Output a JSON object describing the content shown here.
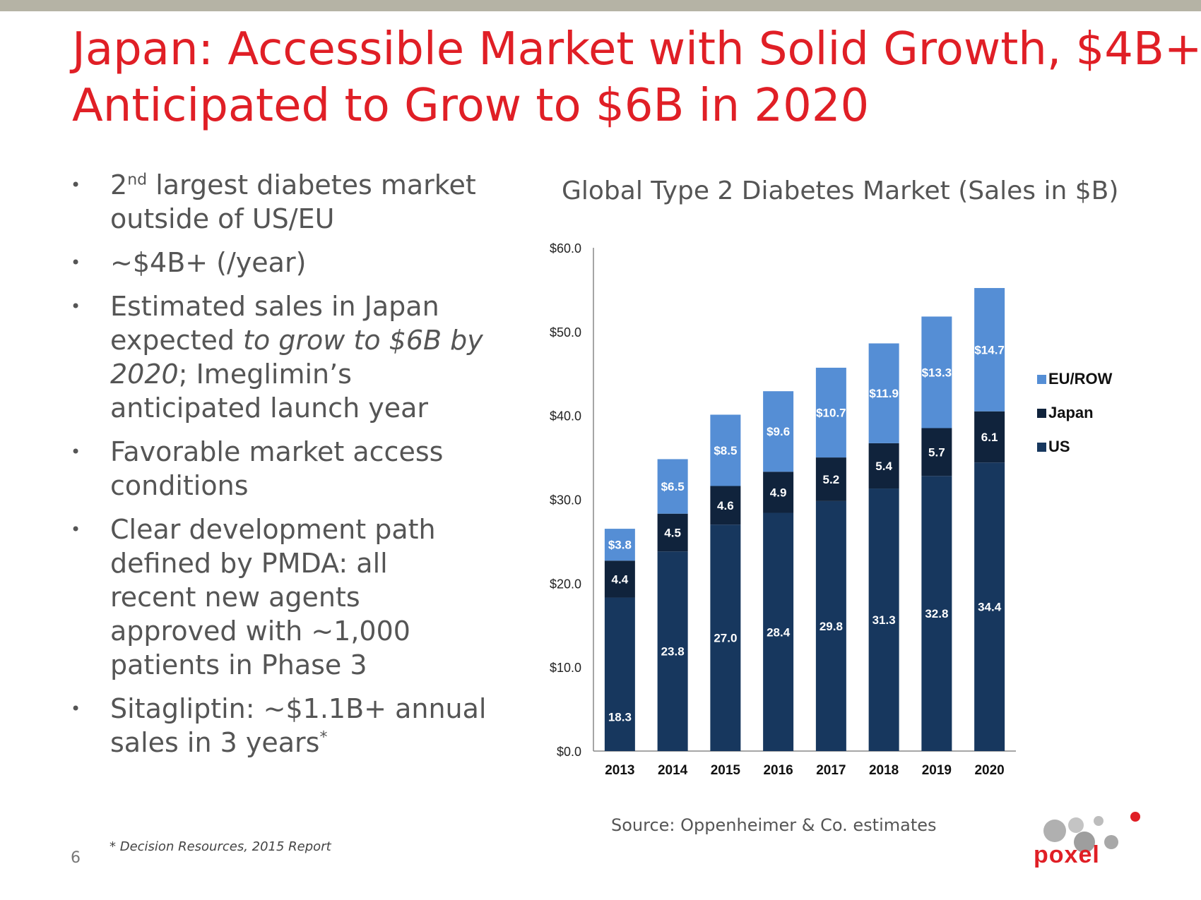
{
  "slide": {
    "title_line1": "Japan: Accessible Market with Solid Growth, $4B+",
    "title_line2": "Anticipated to Grow to $6B in 2020",
    "page_number": "6",
    "footnote": "* Decision Resources, 2015 Report",
    "source": "Source: Oppenheimer & Co. estimates",
    "logo_text": "poxel"
  },
  "bullets": {
    "b1": {
      "pre": "2",
      "sup": "nd",
      "rest": " largest diabetes market",
      "line2": "outside of US/EU"
    },
    "b2": {
      "line1": "~$4B+ (/year)"
    },
    "b3": {
      "line1": "Estimated sales in Japan",
      "line2_normal": "expected ",
      "line2_italic": "to grow to $6B by",
      "line3_italic": "2020",
      "line3_normal": "; Imeglimin’s",
      "line4": "anticipated launch year"
    },
    "b4": {
      "line1": "Favorable market access",
      "line2": "conditions"
    },
    "b5": {
      "line1": "Clear development path",
      "line2": "defined by PMDA: all",
      "line3": "recent new agents",
      "line4": "approved with ~1,000",
      "line5": "patients in Phase 3"
    },
    "b6": {
      "line1": "Sitagliptin: ~$1.1B+ annual",
      "line2": "sales in 3 years",
      "sup": "*"
    }
  },
  "chart_data": {
    "type": "bar",
    "stacked": true,
    "title": "Global Type 2 Diabetes Market (Sales in $B)",
    "categories": [
      "2013",
      "2014",
      "2015",
      "2016",
      "2017",
      "2018",
      "2019",
      "2020"
    ],
    "ylim": [
      0,
      60
    ],
    "yticks": [
      "$0.0",
      "$10.0",
      "$20.0",
      "$30.0",
      "$40.0",
      "$50.0",
      "$60.0"
    ],
    "legend_position": "right",
    "series": [
      {
        "name": "US",
        "color": "#17375e",
        "values": [
          18.3,
          23.8,
          27.0,
          28.4,
          29.8,
          31.3,
          32.8,
          34.4
        ],
        "labels": [
          "18.3",
          "23.8",
          "27.0",
          "28.4",
          "29.8",
          "31.3",
          "32.8",
          "34.4"
        ]
      },
      {
        "name": "Japan",
        "color": "#10233c",
        "values": [
          4.4,
          4.5,
          4.6,
          4.9,
          5.2,
          5.4,
          5.7,
          6.1
        ],
        "labels": [
          "4.4",
          "4.5",
          "4.6",
          "4.9",
          "5.2",
          "5.4",
          "5.7",
          "6.1"
        ]
      },
      {
        "name": "EU/ROW",
        "color": "#558ed5",
        "values": [
          3.8,
          6.5,
          8.5,
          9.6,
          10.7,
          11.9,
          13.3,
          14.7
        ],
        "labels": [
          "$3.8",
          "$6.5",
          "$8.5",
          "$9.6",
          "$10.7",
          "$11.9",
          "$13.3",
          "$14.7"
        ]
      }
    ],
    "legend_order": [
      "EU/ROW",
      "Japan",
      "US"
    ]
  }
}
